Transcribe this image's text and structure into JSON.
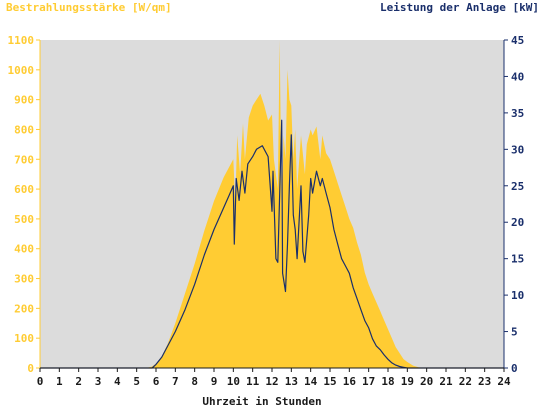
{
  "chart_data": {
    "type": "area",
    "left_axis_label": "Bestrahlungsstärke [W/qm]",
    "right_axis_label": "Leistung der Anlage [kW]",
    "xlabel": "Uhrzeit in Stunden",
    "x_ticks": [
      "0",
      "1",
      "2",
      "3",
      "4",
      "5",
      "6",
      "7",
      "8",
      "9",
      "10",
      "11",
      "12",
      "13",
      "14",
      "15",
      "16",
      "17",
      "18",
      "19",
      "20",
      "21",
      "22",
      "23",
      "24"
    ],
    "y_left_ticks": [
      "0",
      "100",
      "200",
      "300",
      "400",
      "500",
      "600",
      "700",
      "800",
      "900",
      "1000",
      "1100"
    ],
    "y_right_ticks": [
      "0",
      "5",
      "10",
      "15",
      "20",
      "25",
      "30",
      "35",
      "40",
      "45"
    ],
    "xlim": [
      0,
      24
    ],
    "ylim_left": [
      0,
      1100
    ],
    "ylim_right": [
      0,
      45
    ],
    "grid": false,
    "colors": {
      "irradiance": "#ffcc33",
      "power": "#1a2f6b",
      "left_axis": "#ffcc33",
      "right_axis": "#1a2f6b",
      "plot_bg": "#dcdcdc"
    },
    "series": [
      {
        "name": "Bestrahlungsstärke [W/qm]",
        "axis": "left",
        "x": [
          0,
          5.5,
          5.8,
          6,
          6.3,
          6.6,
          7,
          7.5,
          8,
          8.5,
          9,
          9.5,
          10,
          10.1,
          10.2,
          10.35,
          10.5,
          10.6,
          10.8,
          11,
          11.2,
          11.4,
          11.6,
          11.8,
          12,
          12.1,
          12.3,
          12.4,
          12.5,
          12.6,
          12.7,
          12.8,
          12.9,
          13,
          13.1,
          13.2,
          13.3,
          13.5,
          13.7,
          13.8,
          14,
          14.1,
          14.3,
          14.5,
          14.6,
          14.8,
          15,
          15.2,
          15.4,
          15.6,
          15.8,
          16,
          16.2,
          16.4,
          16.6,
          16.8,
          17,
          17.2,
          17.4,
          17.6,
          17.8,
          18,
          18.2,
          18.4,
          18.6,
          18.8,
          19,
          19.3,
          19.6,
          20,
          24
        ],
        "values": [
          0,
          0,
          5,
          15,
          40,
          80,
          150,
          250,
          350,
          460,
          560,
          640,
          700,
          550,
          780,
          650,
          820,
          700,
          840,
          880,
          900,
          920,
          880,
          830,
          850,
          700,
          600,
          1100,
          500,
          780,
          700,
          1000,
          900,
          880,
          700,
          800,
          600,
          780,
          650,
          750,
          800,
          780,
          810,
          700,
          780,
          720,
          700,
          660,
          620,
          580,
          540,
          500,
          470,
          420,
          380,
          320,
          280,
          250,
          220,
          190,
          160,
          130,
          100,
          70,
          50,
          30,
          20,
          8,
          2,
          0,
          0
        ]
      },
      {
        "name": "Leistung der Anlage [kW]",
        "axis": "right",
        "x": [
          0,
          5.8,
          6,
          6.3,
          6.6,
          7,
          7.5,
          8,
          8.5,
          9,
          9.5,
          9.8,
          10,
          10.05,
          10.15,
          10.3,
          10.45,
          10.6,
          10.75,
          11,
          11.2,
          11.5,
          11.8,
          12,
          12.05,
          12.2,
          12.3,
          12.5,
          12.55,
          12.7,
          12.8,
          12.9,
          13,
          13.1,
          13.2,
          13.3,
          13.5,
          13.6,
          13.7,
          13.9,
          14,
          14.1,
          14.3,
          14.5,
          14.6,
          14.8,
          15,
          15.2,
          15.4,
          15.6,
          15.8,
          16,
          16.2,
          16.4,
          16.6,
          16.8,
          17,
          17.2,
          17.4,
          17.6,
          17.8,
          18,
          18.2,
          18.4,
          18.6,
          18.8,
          19,
          19.3,
          19.6,
          20,
          24
        ],
        "values": [
          0,
          0,
          0.5,
          1.5,
          3,
          5,
          8,
          11.5,
          15.5,
          19,
          22,
          23.8,
          25,
          17,
          26,
          23,
          27,
          24,
          28,
          29,
          30,
          30.5,
          29,
          21.5,
          27,
          15,
          14.5,
          34,
          13,
          10.5,
          17,
          25,
          32,
          21,
          19,
          15,
          25,
          16,
          14.5,
          21,
          26,
          24,
          27,
          25,
          26,
          24,
          22,
          19,
          17,
          15,
          14,
          13,
          11,
          9.5,
          8,
          6.5,
          5.5,
          4,
          3,
          2.5,
          1.8,
          1.2,
          0.7,
          0.4,
          0.2,
          0.1,
          0,
          0,
          0,
          0,
          0
        ]
      }
    ]
  }
}
